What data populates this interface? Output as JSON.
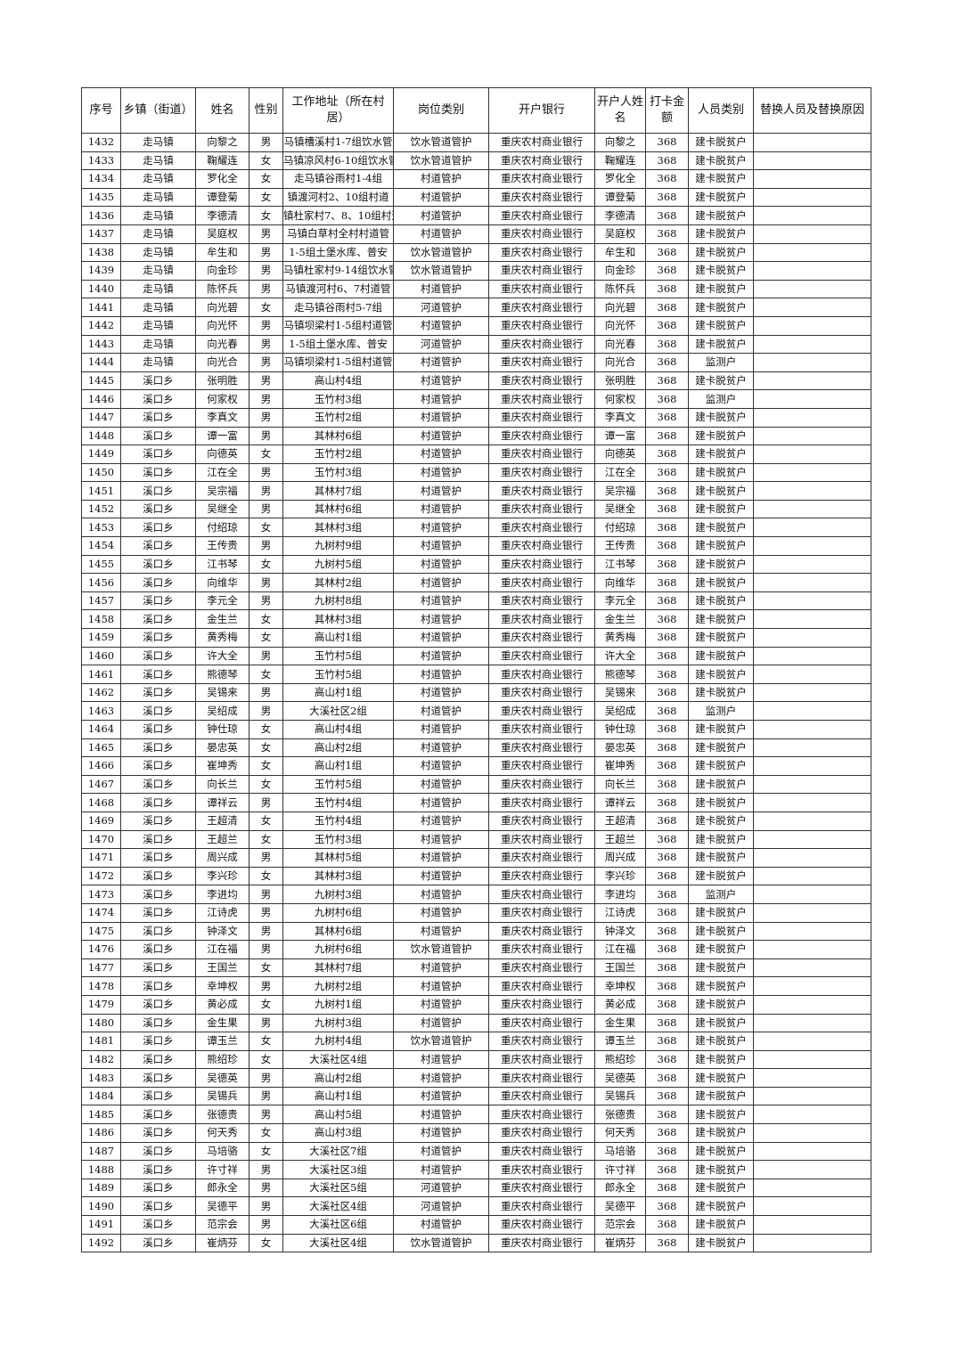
{
  "headers": [
    "序号",
    "乡镇（街道）",
    "姓名",
    "性别",
    "工作地址（所在村居）",
    "岗位类别",
    "开户银行",
    "开户人姓名",
    "打卡金额",
    "人员类别",
    "替换人员及替换原因"
  ],
  "rows": [
    [
      "1432",
      "走马镇",
      "向黎之",
      "男",
      "马镇槽溪村1-7组饮水管",
      "饮水管道管护",
      "重庆农村商业银行",
      "向黎之",
      "368",
      "建卡脱贫户",
      ""
    ],
    [
      "1433",
      "走马镇",
      "鞠耀连",
      "女",
      "马镇凉风村6-10组饮水管",
      "饮水管道管护",
      "重庆农村商业银行",
      "鞠耀连",
      "368",
      "建卡脱贫户",
      ""
    ],
    [
      "1434",
      "走马镇",
      "罗化全",
      "女",
      "走马镇谷雨村1-4组",
      "村道管护",
      "重庆农村商业银行",
      "罗化全",
      "368",
      "建卡脱贫户",
      ""
    ],
    [
      "1435",
      "走马镇",
      "谭登菊",
      "女",
      "镇渡河村2、10组村道",
      "村道管护",
      "重庆农村商业银行",
      "谭登菊",
      "368",
      "建卡脱贫户",
      ""
    ],
    [
      "1436",
      "走马镇",
      "李德清",
      "女",
      "镇杜家村7、8、10组村道",
      "村道管护",
      "重庆农村商业银行",
      "李德清",
      "368",
      "建卡脱贫户",
      ""
    ],
    [
      "1437",
      "走马镇",
      "吴庭权",
      "男",
      "马镇白草村全村村道管",
      "村道管护",
      "重庆农村商业银行",
      "吴庭权",
      "368",
      "建卡脱贫户",
      ""
    ],
    [
      "1438",
      "走马镇",
      "牟生和",
      "男",
      "1-5组土堡水库、普安",
      "饮水管道管护",
      "重庆农村商业银行",
      "牟生和",
      "368",
      "建卡脱贫户",
      ""
    ],
    [
      "1439",
      "走马镇",
      "向金珍",
      "男",
      "马镇杜家村9-14组饮水管",
      "饮水管道管护",
      "重庆农村商业银行",
      "向金珍",
      "368",
      "建卡脱贫户",
      ""
    ],
    [
      "1440",
      "走马镇",
      "陈怀兵",
      "男",
      "马镇渡河村6、7村道管",
      "村道管护",
      "重庆农村商业银行",
      "陈怀兵",
      "368",
      "建卡脱贫户",
      ""
    ],
    [
      "1441",
      "走马镇",
      "向光碧",
      "女",
      "走马镇谷雨村5-7组",
      "河道管护",
      "重庆农村商业银行",
      "向光碧",
      "368",
      "建卡脱贫户",
      ""
    ],
    [
      "1442",
      "走马镇",
      "向光怀",
      "男",
      "马镇坝梁村1-5组村道管",
      "村道管护",
      "重庆农村商业银行",
      "向光怀",
      "368",
      "建卡脱贫户",
      ""
    ],
    [
      "1443",
      "走马镇",
      "向光春",
      "男",
      "1-5组土堡水库、普安",
      "河道管护",
      "重庆农村商业银行",
      "向光春",
      "368",
      "建卡脱贫户",
      ""
    ],
    [
      "1444",
      "走马镇",
      "向光合",
      "男",
      "马镇坝梁村1-5组村道管",
      "村道管护",
      "重庆农村商业银行",
      "向光合",
      "368",
      "监测户",
      ""
    ],
    [
      "1445",
      "溪口乡",
      "张明胜",
      "男",
      "高山村4组",
      "村道管护",
      "重庆农村商业银行",
      "张明胜",
      "368",
      "建卡脱贫户",
      ""
    ],
    [
      "1446",
      "溪口乡",
      "何家权",
      "男",
      "玉竹村3组",
      "村道管护",
      "重庆农村商业银行",
      "何家权",
      "368",
      "监测户",
      ""
    ],
    [
      "1447",
      "溪口乡",
      "李真文",
      "男",
      "玉竹村2组",
      "村道管护",
      "重庆农村商业银行",
      "李真文",
      "368",
      "建卡脱贫户",
      ""
    ],
    [
      "1448",
      "溪口乡",
      "谭一富",
      "男",
      "其林村6组",
      "村道管护",
      "重庆农村商业银行",
      "谭一富",
      "368",
      "建卡脱贫户",
      ""
    ],
    [
      "1449",
      "溪口乡",
      "向德英",
      "女",
      "玉竹村2组",
      "村道管护",
      "重庆农村商业银行",
      "向德英",
      "368",
      "建卡脱贫户",
      ""
    ],
    [
      "1450",
      "溪口乡",
      "江在全",
      "男",
      "玉竹村3组",
      "村道管护",
      "重庆农村商业银行",
      "江在全",
      "368",
      "建卡脱贫户",
      ""
    ],
    [
      "1451",
      "溪口乡",
      "吴宗福",
      "男",
      "其林村7组",
      "村道管护",
      "重庆农村商业银行",
      "吴宗福",
      "368",
      "建卡脱贫户",
      ""
    ],
    [
      "1452",
      "溪口乡",
      "吴继全",
      "男",
      "其林村6组",
      "村道管护",
      "重庆农村商业银行",
      "吴继全",
      "368",
      "建卡脱贫户",
      ""
    ],
    [
      "1453",
      "溪口乡",
      "付绍琼",
      "女",
      "其林村3组",
      "村道管护",
      "重庆农村商业银行",
      "付绍琼",
      "368",
      "建卡脱贫户",
      ""
    ],
    [
      "1454",
      "溪口乡",
      "王传贵",
      "男",
      "九树村9组",
      "村道管护",
      "重庆农村商业银行",
      "王传贵",
      "368",
      "建卡脱贫户",
      ""
    ],
    [
      "1455",
      "溪口乡",
      "江书琴",
      "女",
      "九树村5组",
      "村道管护",
      "重庆农村商业银行",
      "江书琴",
      "368",
      "建卡脱贫户",
      ""
    ],
    [
      "1456",
      "溪口乡",
      "向维华",
      "男",
      "其林村2组",
      "村道管护",
      "重庆农村商业银行",
      "向维华",
      "368",
      "建卡脱贫户",
      ""
    ],
    [
      "1457",
      "溪口乡",
      "李元全",
      "男",
      "九树村8组",
      "村道管护",
      "重庆农村商业银行",
      "李元全",
      "368",
      "建卡脱贫户",
      ""
    ],
    [
      "1458",
      "溪口乡",
      "金生兰",
      "女",
      "其林村3组",
      "村道管护",
      "重庆农村商业银行",
      "金生兰",
      "368",
      "建卡脱贫户",
      ""
    ],
    [
      "1459",
      "溪口乡",
      "黄秀梅",
      "女",
      "高山村1组",
      "村道管护",
      "重庆农村商业银行",
      "黄秀梅",
      "368",
      "建卡脱贫户",
      ""
    ],
    [
      "1460",
      "溪口乡",
      "许大全",
      "男",
      "玉竹村5组",
      "村道管护",
      "重庆农村商业银行",
      "许大全",
      "368",
      "建卡脱贫户",
      ""
    ],
    [
      "1461",
      "溪口乡",
      "熊德琴",
      "女",
      "玉竹村5组",
      "村道管护",
      "重庆农村商业银行",
      "熊德琴",
      "368",
      "建卡脱贫户",
      ""
    ],
    [
      "1462",
      "溪口乡",
      "吴锡来",
      "男",
      "高山村1组",
      "村道管护",
      "重庆农村商业银行",
      "吴锡来",
      "368",
      "建卡脱贫户",
      ""
    ],
    [
      "1463",
      "溪口乡",
      "吴绍成",
      "男",
      "大溪社区2组",
      "村道管护",
      "重庆农村商业银行",
      "吴绍成",
      "368",
      "监测户",
      ""
    ],
    [
      "1464",
      "溪口乡",
      "钟仕琼",
      "女",
      "高山村4组",
      "村道管护",
      "重庆农村商业银行",
      "钟仕琼",
      "368",
      "建卡脱贫户",
      ""
    ],
    [
      "1465",
      "溪口乡",
      "晏忠英",
      "女",
      "高山村2组",
      "村道管护",
      "重庆农村商业银行",
      "晏忠英",
      "368",
      "建卡脱贫户",
      ""
    ],
    [
      "1466",
      "溪口乡",
      "崔坤秀",
      "女",
      "高山村1组",
      "村道管护",
      "重庆农村商业银行",
      "崔坤秀",
      "368",
      "建卡脱贫户",
      ""
    ],
    [
      "1467",
      "溪口乡",
      "向长兰",
      "女",
      "玉竹村5组",
      "村道管护",
      "重庆农村商业银行",
      "向长兰",
      "368",
      "建卡脱贫户",
      ""
    ],
    [
      "1468",
      "溪口乡",
      "谭祥云",
      "男",
      "玉竹村4组",
      "村道管护",
      "重庆农村商业银行",
      "谭祥云",
      "368",
      "建卡脱贫户",
      ""
    ],
    [
      "1469",
      "溪口乡",
      "王超清",
      "女",
      "玉竹村4组",
      "村道管护",
      "重庆农村商业银行",
      "王超清",
      "368",
      "建卡脱贫户",
      ""
    ],
    [
      "1470",
      "溪口乡",
      "王超兰",
      "女",
      "玉竹村3组",
      "村道管护",
      "重庆农村商业银行",
      "王超兰",
      "368",
      "建卡脱贫户",
      ""
    ],
    [
      "1471",
      "溪口乡",
      "周兴成",
      "男",
      "其林村5组",
      "村道管护",
      "重庆农村商业银行",
      "周兴成",
      "368",
      "建卡脱贫户",
      ""
    ],
    [
      "1472",
      "溪口乡",
      "李兴珍",
      "女",
      "其林村3组",
      "村道管护",
      "重庆农村商业银行",
      "李兴珍",
      "368",
      "建卡脱贫户",
      ""
    ],
    [
      "1473",
      "溪口乡",
      "李进均",
      "男",
      "九树村3组",
      "村道管护",
      "重庆农村商业银行",
      "李进均",
      "368",
      "监测户",
      ""
    ],
    [
      "1474",
      "溪口乡",
      "江诗虎",
      "男",
      "九树村6组",
      "村道管护",
      "重庆农村商业银行",
      "江诗虎",
      "368",
      "建卡脱贫户",
      ""
    ],
    [
      "1475",
      "溪口乡",
      "钟泽文",
      "男",
      "其林村6组",
      "村道管护",
      "重庆农村商业银行",
      "钟泽文",
      "368",
      "建卡脱贫户",
      ""
    ],
    [
      "1476",
      "溪口乡",
      "江在福",
      "男",
      "九树村6组",
      "饮水管道管护",
      "重庆农村商业银行",
      "江在福",
      "368",
      "建卡脱贫户",
      ""
    ],
    [
      "1477",
      "溪口乡",
      "王国兰",
      "女",
      "其林村7组",
      "村道管护",
      "重庆农村商业银行",
      "王国兰",
      "368",
      "建卡脱贫户",
      ""
    ],
    [
      "1478",
      "溪口乡",
      "幸坤权",
      "男",
      "九树村2组",
      "村道管护",
      "重庆农村商业银行",
      "幸坤权",
      "368",
      "建卡脱贫户",
      ""
    ],
    [
      "1479",
      "溪口乡",
      "黄必成",
      "女",
      "九树村1组",
      "村道管护",
      "重庆农村商业银行",
      "黄必成",
      "368",
      "建卡脱贫户",
      ""
    ],
    [
      "1480",
      "溪口乡",
      "金生果",
      "男",
      "九树村3组",
      "村道管护",
      "重庆农村商业银行",
      "金生果",
      "368",
      "建卡脱贫户",
      ""
    ],
    [
      "1481",
      "溪口乡",
      "谭玉兰",
      "女",
      "九树村4组",
      "饮水管道管护",
      "重庆农村商业银行",
      "谭玉兰",
      "368",
      "建卡脱贫户",
      ""
    ],
    [
      "1482",
      "溪口乡",
      "熊绍珍",
      "女",
      "大溪社区4组",
      "村道管护",
      "重庆农村商业银行",
      "熊绍珍",
      "368",
      "建卡脱贫户",
      ""
    ],
    [
      "1483",
      "溪口乡",
      "吴德英",
      "男",
      "高山村2组",
      "村道管护",
      "重庆农村商业银行",
      "吴德英",
      "368",
      "建卡脱贫户",
      ""
    ],
    [
      "1484",
      "溪口乡",
      "吴锡兵",
      "男",
      "高山村1组",
      "村道管护",
      "重庆农村商业银行",
      "吴锡兵",
      "368",
      "建卡脱贫户",
      ""
    ],
    [
      "1485",
      "溪口乡",
      "张德贵",
      "男",
      "高山村5组",
      "村道管护",
      "重庆农村商业银行",
      "张德贵",
      "368",
      "建卡脱贫户",
      ""
    ],
    [
      "1486",
      "溪口乡",
      "何天秀",
      "女",
      "高山村3组",
      "村道管护",
      "重庆农村商业银行",
      "何天秀",
      "368",
      "建卡脱贫户",
      ""
    ],
    [
      "1487",
      "溪口乡",
      "马培骆",
      "女",
      "大溪社区7组",
      "村道管护",
      "重庆农村商业银行",
      "马培骆",
      "368",
      "建卡脱贫户",
      ""
    ],
    [
      "1488",
      "溪口乡",
      "许寸祥",
      "男",
      "大溪社区3组",
      "村道管护",
      "重庆农村商业银行",
      "许寸祥",
      "368",
      "建卡脱贫户",
      ""
    ],
    [
      "1489",
      "溪口乡",
      "郎永全",
      "男",
      "大溪社区5组",
      "河道管护",
      "重庆农村商业银行",
      "郎永全",
      "368",
      "建卡脱贫户",
      ""
    ],
    [
      "1490",
      "溪口乡",
      "吴德平",
      "男",
      "大溪社区4组",
      "河道管护",
      "重庆农村商业银行",
      "吴德平",
      "368",
      "建卡脱贫户",
      ""
    ],
    [
      "1491",
      "溪口乡",
      "范宗会",
      "男",
      "大溪社区6组",
      "村道管护",
      "重庆农村商业银行",
      "范宗会",
      "368",
      "建卡脱贫户",
      ""
    ],
    [
      "1492",
      "溪口乡",
      "崔炳芬",
      "女",
      "大溪社区4组",
      "饮水管道管护",
      "重庆农村商业银行",
      "崔炳芬",
      "368",
      "建卡脱贫户",
      ""
    ]
  ]
}
